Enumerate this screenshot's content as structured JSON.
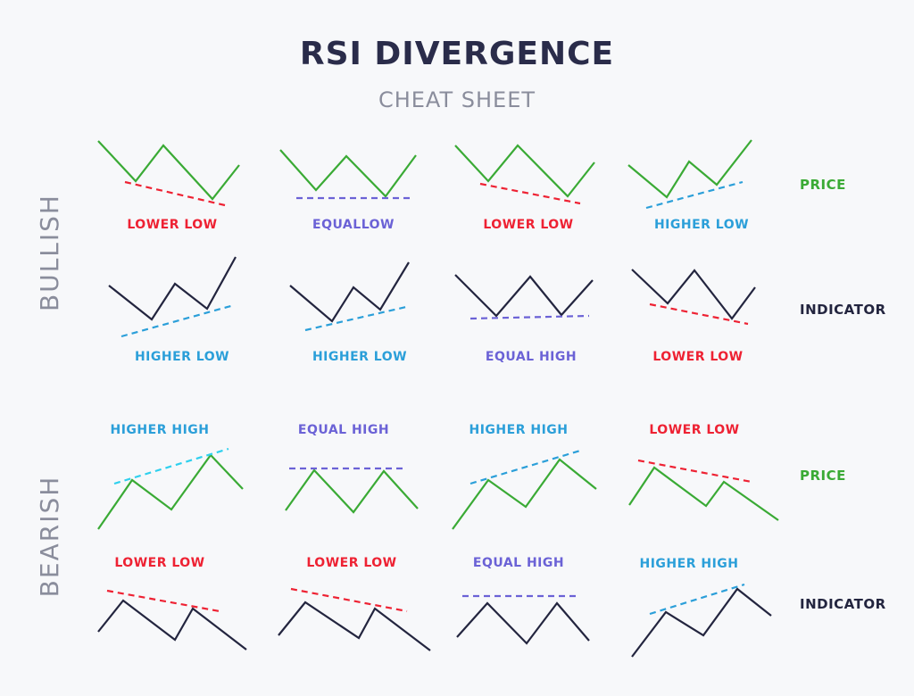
{
  "title": "RSI DIVERGENCE",
  "subtitle": "CHEAT SHEET",
  "sections": {
    "bullish": "BULLISH",
    "bearish": "BEARISH"
  },
  "row_labels": {
    "price": "PRICE",
    "indicator": "INDICATOR"
  },
  "tags": {
    "bullish_price": [
      "LOWER LOW",
      "EQUALLOW",
      "LOWER LOW",
      "HIGHER LOW"
    ],
    "bullish_indicator": [
      "HIGHER LOW",
      "HIGHER LOW",
      "EQUAL HIGH",
      "LOWER LOW"
    ],
    "bearish_price": [
      "HIGHER HIGH",
      "EQUAL HIGH",
      "HIGHER HIGH",
      "LOWER LOW"
    ],
    "bearish_indicator": [
      "LOWER LOW",
      "LOWER LOW",
      "EQUAL HIGH",
      "HIGHER HIGH"
    ]
  },
  "colors": {
    "price_line": "#3aaa35",
    "indicator_line": "#23253f",
    "lower": "#ee2233",
    "equal": "#6b62d6",
    "higher": "#2b9fd9",
    "higher_bright": "#2fd0ee",
    "title": "#2a2c4a",
    "muted": "#8a8d9c"
  }
}
